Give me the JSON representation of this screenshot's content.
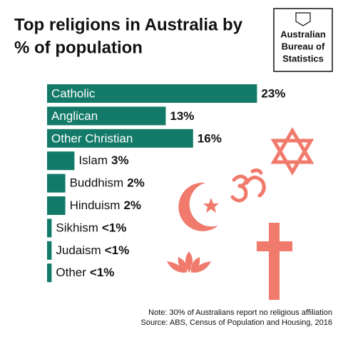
{
  "chart_data": {
    "type": "bar",
    "title_lines": [
      "Top religions in Australia by",
      "% of population"
    ],
    "categories": [
      "Catholic",
      "Anglican",
      "Other Christian",
      "Islam",
      "Buddhism",
      "Hinduism",
      "Sikhism",
      "Judaism",
      "Other"
    ],
    "values": [
      23,
      13,
      16,
      3,
      2,
      2,
      0.5,
      0.5,
      0.5
    ],
    "value_labels": [
      "23%",
      "13%",
      "16%",
      "3%",
      "2%",
      "2%",
      "<1%",
      "<1%",
      "<1%"
    ],
    "color": "#137a69"
  },
  "logo": {
    "lines": [
      "Australian",
      "Bureau of",
      "Statistics"
    ]
  },
  "footer": {
    "note": "Note: 30% of Australians report no religious affiliation",
    "source": "Source: ABS, Census of Population and Housing, 2016"
  }
}
